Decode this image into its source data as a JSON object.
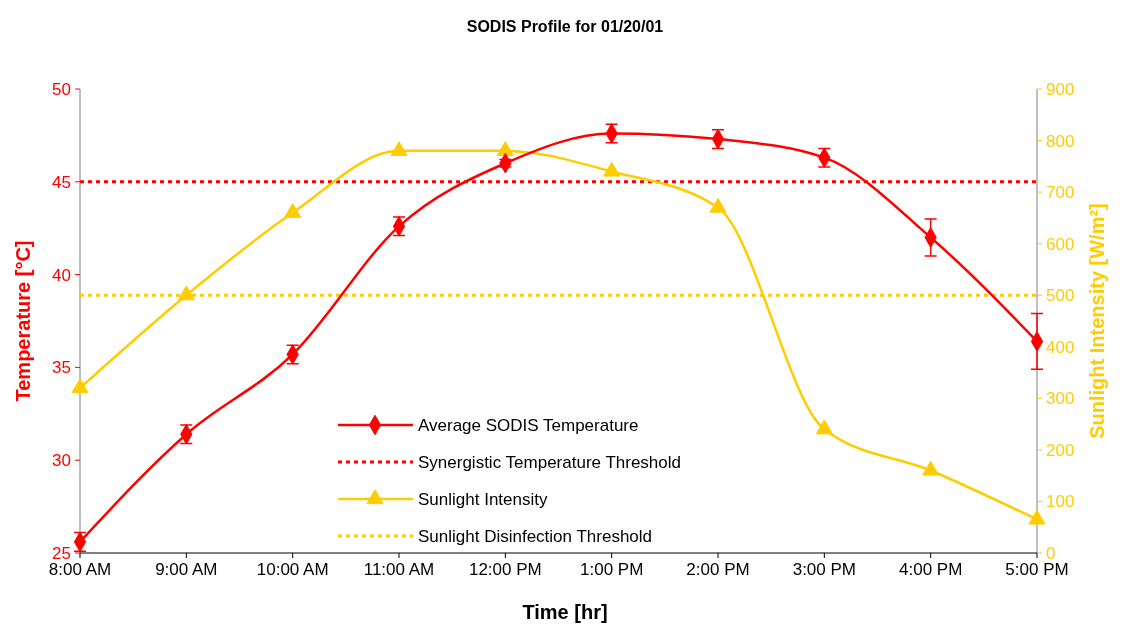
{
  "chart_data": {
    "type": "line",
    "title": "SODIS Profile for 01/20/01",
    "xlabel": "Time [hr]",
    "ylabel": "Temperature [°C]",
    "y2label": "Sunlight Intensity [W/m²]",
    "categories": [
      "8:00 AM",
      "9:00 AM",
      "10:00 AM",
      "11:00 AM",
      "12:00 PM",
      "1:00 PM",
      "2:00 PM",
      "3:00 PM",
      "4:00 PM",
      "5:00 PM"
    ],
    "series": [
      {
        "name": "Average SODIS Temperature",
        "color": "#ff0000",
        "marker": "diamond",
        "values": [
          25.6,
          31.4,
          35.7,
          42.6,
          46.0,
          47.6,
          47.3,
          46.3,
          42.0,
          36.4
        ],
        "errors": [
          0.5,
          0.5,
          0.5,
          0.5,
          0.2,
          0.5,
          0.5,
          0.5,
          1.0,
          1.5
        ]
      },
      {
        "name": "Sunlight Intensity",
        "color": "#ffcc00",
        "marker": "triangle",
        "axis": "y2",
        "values": [
          320,
          500,
          660,
          780,
          780,
          740,
          670,
          240,
          160,
          65
        ]
      }
    ],
    "ref_lines": [
      {
        "axis": "y",
        "value": 45,
        "label": "Synergistic Temperature Threshold",
        "color": "#ff0000",
        "line_style": "dotted"
      },
      {
        "axis": "y2",
        "value": 500,
        "label": "Sunlight Disinfection Threshold",
        "color": "#ffcc00",
        "line_style": "dotted"
      }
    ],
    "ylim": [
      25,
      50
    ],
    "yticks": [
      25,
      30,
      35,
      40,
      45,
      50
    ],
    "y2lim": [
      0,
      900
    ],
    "y2ticks": [
      0,
      100,
      200,
      300,
      400,
      500,
      600,
      700,
      800,
      900
    ],
    "grid": false,
    "legend": "bottom"
  }
}
